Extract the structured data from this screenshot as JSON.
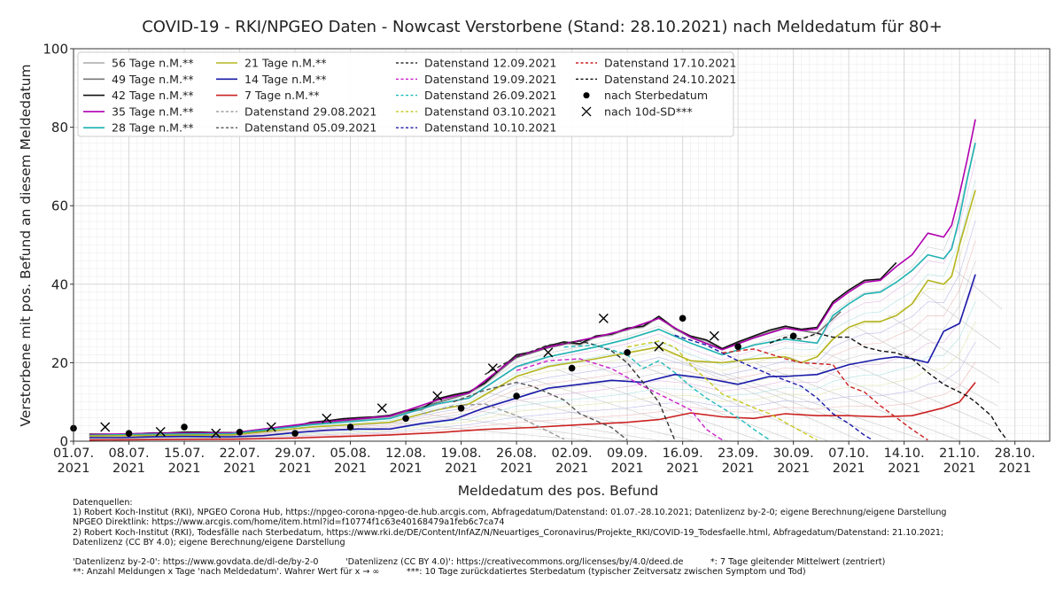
{
  "chart_data": {
    "type": "line",
    "title": "COVID-19 - RKI/NPGEO Daten - Nowcast Verstorbene (Stand: 28.10.2021) nach Meldedatum für 80+",
    "xlabel": "Meldedatum des pos. Befund",
    "ylabel": "Verstorbene mit pos. Befund an diesem Meldedatum",
    "ylim": [
      0,
      100
    ],
    "xlim_days": [
      0,
      123.4
    ],
    "x_origin_date": "01.07.2021",
    "grid": true,
    "legend_position": "top-left",
    "yticks": [
      0,
      20,
      40,
      60,
      80,
      100
    ],
    "xticks": [
      {
        "day": 0,
        "label": "01.07.\n2021"
      },
      {
        "day": 7,
        "label": "08.07.\n2021"
      },
      {
        "day": 14,
        "label": "15.07.\n2021"
      },
      {
        "day": 21,
        "label": "22.07.\n2021"
      },
      {
        "day": 28,
        "label": "29.07.\n2021"
      },
      {
        "day": 35,
        "label": "05.08.\n2021"
      },
      {
        "day": 42,
        "label": "12.08.\n2021"
      },
      {
        "day": 49,
        "label": "19.08.\n2021"
      },
      {
        "day": 56,
        "label": "26.08.\n2021"
      },
      {
        "day": 63,
        "label": "02.09.\n2021"
      },
      {
        "day": 70,
        "label": "09.09.\n2021"
      },
      {
        "day": 77,
        "label": "16.09.\n2021"
      },
      {
        "day": 84,
        "label": "23.09.\n2021"
      },
      {
        "day": 91,
        "label": "30.09.\n2021"
      },
      {
        "day": 98,
        "label": "07.10.\n2021"
      },
      {
        "day": 105,
        "label": "14.10.\n2021"
      },
      {
        "day": 112,
        "label": "21.10.\n2021"
      },
      {
        "day": 119,
        "label": "28.10.\n2021"
      }
    ],
    "series": [
      {
        "name": "56 Tage n.M.**",
        "color": "#aaaaaa",
        "style": "solid",
        "x": [
          2,
          4,
          6,
          8,
          10,
          12,
          14,
          16,
          18,
          20,
          22,
          24,
          26,
          28,
          30,
          32,
          34,
          36,
          38,
          40,
          42,
          44,
          46,
          48,
          50,
          52,
          54,
          56,
          58,
          60,
          62,
          64,
          66,
          68,
          70,
          72,
          74,
          76,
          78,
          80,
          82,
          84,
          86,
          88,
          90
        ],
        "y": [
          1.6,
          1.6,
          1.5,
          1.8,
          2.0,
          2.0,
          2.2,
          2.2,
          2.1,
          2.1,
          2.0,
          2.6,
          3.5,
          3.6,
          4.6,
          5.0,
          5.5,
          5.8,
          6.0,
          6.4,
          7.5,
          7.9,
          10.4,
          11.5,
          12.3,
          14.5,
          18.0,
          21.5,
          22.5,
          24.0,
          25.0,
          24.5,
          26.5,
          27.0,
          28.5,
          29.0,
          31.5,
          28.5,
          26.5,
          25.5,
          23.5,
          25.0,
          26.5,
          28.0,
          29.0
        ]
      },
      {
        "name": "49 Tage n.M.**",
        "color": "#777777",
        "style": "solid",
        "x": [
          2,
          10,
          20,
          30,
          40,
          50,
          56,
          60,
          66,
          70,
          74,
          78,
          82,
          86,
          90,
          94,
          97
        ],
        "y": [
          1.5,
          1.9,
          2.0,
          4.5,
          6.3,
          12.2,
          21.3,
          23.8,
          26.4,
          28.4,
          31.3,
          26.4,
          23.4,
          26.4,
          28.9,
          27.5,
          33.0
        ]
      },
      {
        "name": "42 Tage n.M.**",
        "color": "#111111",
        "style": "solid",
        "x": [
          2,
          4,
          6,
          8,
          10,
          12,
          14,
          16,
          18,
          20,
          22,
          24,
          26,
          28,
          30,
          32,
          34,
          36,
          38,
          40,
          42,
          44,
          46,
          48,
          50,
          52,
          54,
          56,
          58,
          60,
          62,
          64,
          66,
          68,
          70,
          72,
          74,
          76,
          78,
          80,
          82,
          84,
          86,
          88,
          90,
          92,
          94,
          96,
          98,
          100,
          102,
          104
        ],
        "y": [
          1.8,
          1.8,
          1.6,
          1.9,
          2.1,
          2.1,
          2.3,
          2.3,
          2.2,
          2.2,
          2.1,
          2.7,
          3.6,
          3.8,
          4.8,
          5.2,
          5.7,
          6.0,
          6.2,
          6.6,
          7.8,
          8.2,
          10.8,
          11.8,
          12.6,
          14.8,
          18.5,
          22.0,
          22.8,
          24.3,
          25.3,
          24.8,
          26.8,
          27.3,
          28.8,
          29.3,
          31.8,
          28.8,
          26.8,
          25.8,
          23.6,
          25.3,
          26.8,
          28.3,
          29.3,
          28.5,
          29.0,
          35.5,
          38.5,
          41.0,
          41.3,
          45.5
        ]
      },
      {
        "name": "35 Tage n.M.**",
        "color": "#b000b0",
        "style": "solid",
        "x": [
          2,
          10,
          20,
          30,
          40,
          46,
          50,
          56,
          60,
          66,
          70,
          74,
          78,
          82,
          86,
          90,
          92,
          94,
          96,
          98,
          100,
          102,
          104,
          106,
          108,
          110,
          111,
          112,
          113,
          114
        ],
        "y": [
          1.7,
          2.0,
          2.1,
          4.6,
          6.4,
          10.5,
          12.3,
          21.6,
          24.0,
          26.5,
          28.5,
          31.3,
          26.5,
          23.3,
          26.3,
          28.8,
          28.2,
          28.6,
          35.0,
          38.0,
          40.5,
          41.0,
          44.5,
          47.5,
          53.0,
          52.0,
          55.0,
          63.0,
          72.0,
          82.0
        ]
      },
      {
        "name": "28 Tage n.M.**",
        "color": "#20b2b2",
        "style": "solid",
        "x": [
          2,
          10,
          20,
          30,
          40,
          46,
          50,
          56,
          60,
          66,
          70,
          74,
          78,
          82,
          86,
          90,
          92,
          94,
          96,
          98,
          100,
          102,
          104,
          106,
          108,
          110,
          111,
          112,
          113,
          114
        ],
        "y": [
          1.5,
          1.8,
          1.9,
          4.2,
          5.8,
          9.5,
          11.0,
          19.0,
          21.5,
          24.0,
          26.0,
          28.5,
          25.0,
          22.0,
          24.5,
          26.0,
          25.5,
          25.0,
          32.0,
          35.0,
          37.5,
          38.0,
          40.5,
          43.5,
          47.5,
          46.5,
          49.0,
          57.0,
          67.0,
          76.0
        ]
      },
      {
        "name": "21 Tage n.M.**",
        "color": "#b5b520",
        "style": "solid",
        "x": [
          2,
          10,
          20,
          30,
          40,
          46,
          50,
          56,
          60,
          66,
          70,
          74,
          78,
          82,
          86,
          90,
          92,
          94,
          96,
          98,
          100,
          102,
          104,
          106,
          108,
          110,
          111,
          112,
          113,
          114
        ],
        "y": [
          1.3,
          1.5,
          1.6,
          3.6,
          4.8,
          8.0,
          9.5,
          16.5,
          19.0,
          21.0,
          22.5,
          24.0,
          20.5,
          20.0,
          21.0,
          21.5,
          20.0,
          21.5,
          26.0,
          29.0,
          30.5,
          30.5,
          32.0,
          35.0,
          41.0,
          40.0,
          42.0,
          50.0,
          57.0,
          64.0
        ]
      },
      {
        "name": "14 Tage n.M.**",
        "color": "#1a1aaa",
        "style": "solid",
        "x": [
          2,
          6,
          10,
          14,
          20,
          24,
          28,
          32,
          36,
          40,
          44,
          48,
          52,
          56,
          60,
          64,
          68,
          72,
          76,
          80,
          84,
          88,
          90,
          94,
          98,
          102,
          104,
          106,
          108,
          110,
          112,
          114
        ],
        "y": [
          0.9,
          0.9,
          1.1,
          1.2,
          1.1,
          1.4,
          2.2,
          2.8,
          3.1,
          3.1,
          4.5,
          5.5,
          8.5,
          11.0,
          13.5,
          14.5,
          15.5,
          15.0,
          17.0,
          16.0,
          14.5,
          16.5,
          16.5,
          17.0,
          19.5,
          21.0,
          21.5,
          21.0,
          20.0,
          28.0,
          30.0,
          42.5
        ]
      },
      {
        "name": "7 Tage n.M.**",
        "color": "#cc2222",
        "style": "solid",
        "x": [
          2,
          10,
          20,
          28,
          34,
          40,
          46,
          52,
          58,
          64,
          70,
          74,
          78,
          82,
          86,
          90,
          94,
          98,
          102,
          106,
          110,
          112,
          114
        ],
        "y": [
          0.3,
          0.4,
          0.5,
          0.8,
          1.2,
          1.6,
          2.2,
          3.0,
          3.5,
          4.2,
          4.8,
          5.5,
          7.2,
          6.2,
          5.8,
          7.0,
          6.5,
          6.5,
          6.2,
          6.5,
          8.5,
          10.0,
          15.0
        ]
      },
      {
        "name": "Datenstand 29.08.2021",
        "color": "#999999",
        "style": "dashed",
        "x": [
          44,
          48,
          52,
          54,
          56,
          58,
          60,
          62
        ],
        "y": [
          7.0,
          9.0,
          9.5,
          8.0,
          6.5,
          4.5,
          2.5,
          0.5
        ]
      },
      {
        "name": "Datenstand 05.09.2021",
        "color": "#555555",
        "style": "dashed",
        "x": [
          48,
          52,
          56,
          58,
          62,
          64,
          68,
          70
        ],
        "y": [
          10.0,
          13.0,
          15.0,
          14.0,
          10.5,
          7.0,
          3.5,
          0.3
        ]
      },
      {
        "name": "Datenstand 12.09.2021",
        "color": "#333333",
        "style": "dashed",
        "x": [
          52,
          56,
          60,
          64,
          66,
          68,
          70,
          74,
          76
        ],
        "y": [
          17.0,
          21.5,
          24.5,
          25.5,
          24.5,
          23.0,
          20.0,
          10.0,
          0.3
        ]
      },
      {
        "name": "Datenstand 19.09.2021",
        "color": "#cc22cc",
        "style": "dashed",
        "x": [
          56,
          60,
          64,
          68,
          72,
          74,
          78,
          80,
          82
        ],
        "y": [
          18.0,
          20.5,
          21.0,
          18.5,
          14.0,
          12.0,
          8.0,
          3.0,
          0.3
        ]
      },
      {
        "name": "Datenstand 26.09.2021",
        "color": "#22bbbb",
        "style": "dashed",
        "x": [
          62,
          66,
          70,
          72,
          74,
          76,
          78,
          80,
          84,
          86,
          88
        ],
        "y": [
          24.0,
          24.5,
          22.0,
          18.5,
          20.5,
          17.5,
          14.0,
          11.0,
          6.0,
          3.0,
          0.3
        ]
      },
      {
        "name": "Datenstand 03.10.2021",
        "color": "#c8c820",
        "style": "dashed",
        "x": [
          70,
          74,
          76,
          78,
          82,
          86,
          88,
          92,
          94
        ],
        "y": [
          24.0,
          25.5,
          24.0,
          19.5,
          12.0,
          8.5,
          7.0,
          2.5,
          0.3
        ]
      },
      {
        "name": "Datenstand 10.10.2021",
        "color": "#1a1aaa",
        "style": "dashed",
        "x": [
          76,
          80,
          84,
          88,
          90,
          92,
          94,
          96,
          98,
          100,
          101
        ],
        "y": [
          27.0,
          24.5,
          20.5,
          17.0,
          15.5,
          14.0,
          11.0,
          7.0,
          4.5,
          1.5,
          0.3
        ]
      },
      {
        "name": "Datenstand 17.10.2021",
        "color": "#cc2222",
        "style": "dashed",
        "x": [
          82,
          86,
          90,
          92,
          96,
          98,
          100,
          102,
          104,
          106,
          108
        ],
        "y": [
          22.5,
          23.5,
          21.0,
          20.0,
          19.5,
          14.0,
          12.5,
          9.0,
          6.0,
          3.0,
          0.3
        ]
      },
      {
        "name": "Datenstand 24.10.2021",
        "color": "#111111",
        "style": "dashed",
        "x": [
          88,
          90,
          92,
          94,
          96,
          98,
          100,
          102,
          104,
          106,
          108,
          110,
          112,
          113,
          114,
          116,
          117,
          118
        ],
        "y": [
          25.0,
          26.5,
          26.0,
          27.5,
          26.5,
          26.5,
          24.0,
          23.0,
          22.5,
          21.0,
          17.5,
          14.5,
          12.5,
          11.5,
          10.0,
          6.5,
          3.0,
          0.3
        ]
      }
    ],
    "markers": [
      {
        "name": "nach Sterbedatum",
        "symbol": "dot",
        "color": "#000000",
        "x": [
          0,
          7,
          14,
          21,
          28,
          35,
          42,
          49,
          56,
          63,
          70,
          77,
          84,
          91
        ],
        "y": [
          3.3,
          2.0,
          3.6,
          2.3,
          2.0,
          3.6,
          5.8,
          8.4,
          11.5,
          18.6,
          22.6,
          31.3,
          24.1,
          26.8
        ]
      },
      {
        "name": "nach 10d-SD***",
        "symbol": "x",
        "color": "#000000",
        "x": [
          4,
          11,
          18,
          25,
          32,
          39,
          46,
          53,
          60,
          67,
          74,
          81
        ],
        "y": [
          3.6,
          2.4,
          2.0,
          3.6,
          5.8,
          8.4,
          11.5,
          18.6,
          22.6,
          31.3,
          24.1,
          26.8
        ]
      }
    ]
  },
  "footer": {
    "lines": [
      "Datenquellen:",
      "1) Robert Koch-Institut (RKI), NPGEO Corona Hub, https://npgeo-corona-npgeo-de.hub.arcgis.com, Abfragedatum/Datenstand: 01.07.-28.10.2021; Datenlizenz by-2-0; eigene Berechnung/eigene Darstellung",
      "NPGEO Direktlink: https://www.arcgis.com/home/item.html?id=f10774f1c63e40168479a1feb6c7ca74",
      "2) Robert Koch-Institut (RKI), Todesfälle nach Sterbedatum, https://www.rki.de/DE/Content/InfAZ/N/Neuartiges_Coronavirus/Projekte_RKI/COVID-19_Todesfaelle.html, Abfragedatum/Datenstand: 21.10.2021;",
      "Datenlizenz (CC BY 4.0); eigene Berechnung/eigene Darstellung",
      "",
      "'Datenlizenz by-2-0': https://www.govdata.de/dl-de/by-2-0          'Datenlizenz (CC BY 4.0)': https://creativecommons.org/licenses/by/4.0/deed.de          *: 7 Tage gleitender Mittelwert (zentriert)",
      "**: Anzahl Meldungen x Tage 'nach Meldedatum'. Wahrer Wert für x → ∞          ***: 10 Tage zurückdatiertes Sterbedatum (typischer Zeitversatz zwischen Symptom und Tod)"
    ]
  }
}
